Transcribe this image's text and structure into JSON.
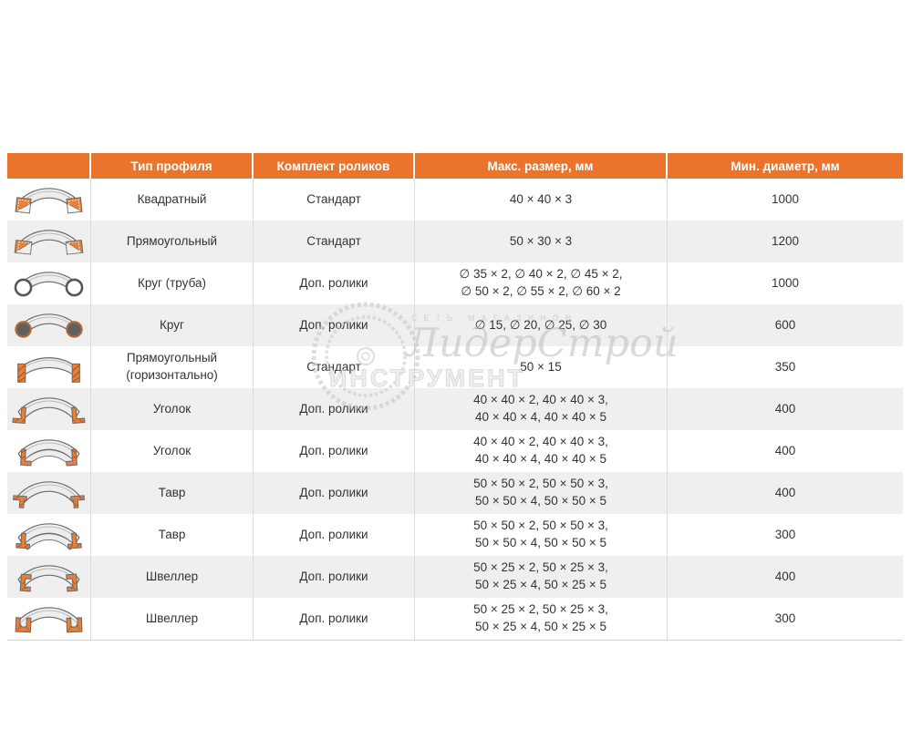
{
  "table": {
    "columns": [
      {
        "key": "icon",
        "label": ""
      },
      {
        "key": "type",
        "label": "Тип профиля"
      },
      {
        "key": "rollers",
        "label": "Комплект роликов"
      },
      {
        "key": "max_size",
        "label": "Макс. размер, мм"
      },
      {
        "key": "min_diameter",
        "label": "Мин. диаметр, мм"
      }
    ],
    "rows": [
      {
        "icon": "square-profile-icon",
        "type": "Квадратный",
        "rollers": "Стандарт",
        "max_size": "40 × 40 × 3",
        "min_diameter": "1000"
      },
      {
        "icon": "rectangle-profile-icon",
        "type": "Прямоугольный",
        "rollers": "Стандарт",
        "max_size": "50 × 30 × 3",
        "min_diameter": "1200"
      },
      {
        "icon": "tube-profile-icon",
        "type": "Круг (труба)",
        "rollers": "Доп. ролики",
        "max_size": "∅ 35 × 2, ∅ 40 × 2, ∅ 45 × 2,\n∅ 50 × 2, ∅ 55 × 2, ∅ 60 × 2",
        "min_diameter": "1000"
      },
      {
        "icon": "round-bar-profile-icon",
        "type": "Круг",
        "rollers": "Доп. ролики",
        "max_size": "∅ 15, ∅ 20, ∅ 25, ∅ 30",
        "min_diameter": "600"
      },
      {
        "icon": "flat-profile-icon",
        "type": "Прямоугольный (горизонтально)",
        "rollers": "Стандарт",
        "max_size": "50 × 15",
        "min_diameter": "350"
      },
      {
        "icon": "angle-profile-icon",
        "type": "Уголок",
        "rollers": "Доп. ролики",
        "max_size": "40 × 40 × 2, 40 × 40 × 3,\n40 × 40 × 4, 40 × 40 × 5",
        "min_diameter": "400"
      },
      {
        "icon": "angle-profile-icon-2",
        "type": "Уголок",
        "rollers": "Доп. ролики",
        "max_size": "40 × 40 × 2, 40 × 40 × 3,\n40 × 40 × 4, 40 × 40 × 5",
        "min_diameter": "400"
      },
      {
        "icon": "tee-profile-icon",
        "type": "Тавр",
        "rollers": "Доп. ролики",
        "max_size": "50 × 50 × 2, 50 × 50 × 3,\n50 × 50 × 4, 50 × 50 × 5",
        "min_diameter": "400"
      },
      {
        "icon": "tee-profile-icon-2",
        "type": "Тавр",
        "rollers": "Доп. ролики",
        "max_size": "50 × 50 × 2, 50 × 50 × 3,\n50 × 50 × 4, 50 × 50 × 5",
        "min_diameter": "300"
      },
      {
        "icon": "channel-profile-icon",
        "type": "Швеллер",
        "rollers": "Доп. ролики",
        "max_size": "50 × 25 × 2, 50 × 25 × 3,\n50 × 25 × 4, 50 × 25 × 5",
        "min_diameter": "400"
      },
      {
        "icon": "channel-profile-icon-2",
        "type": "Швеллер",
        "rollers": "Доп. ролики",
        "max_size": "50 × 25 × 2, 50 × 25 × 3,\n50 × 25 × 4, 50 × 25 × 5",
        "min_diameter": "300"
      }
    ]
  },
  "watermark": {
    "line1": "СЕТЬ МАГАЗИНОВ",
    "line2": "ЛидерСтрой",
    "line3": "ИНСТРУМЕНТ"
  },
  "colors": {
    "header_bg": "#EA742C",
    "header_text": "#FFFFFF",
    "row_alt_bg": "#EFEFEF",
    "body_text": "#333333",
    "icon_orange": "#E8803A",
    "icon_outline": "#6A6A6A"
  }
}
